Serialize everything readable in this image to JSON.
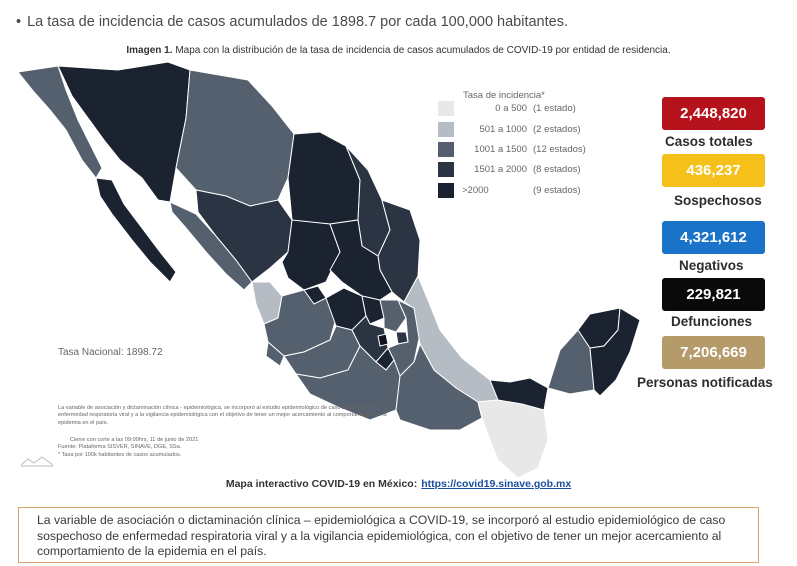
{
  "headline": "La tasa de incidencia de casos acumulados de 1898.7 por cada 100,000 habitantes.",
  "caption": {
    "prefix": "Imagen 1.",
    "text": "Mapa con la distribución de la tasa de incidencia de casos acumulados de COVID-19 por entidad de residencia."
  },
  "legend": {
    "title": "Tasa de incidencia*",
    "items": [
      {
        "range": "0 a   500",
        "count": "(1 estado)",
        "color": "#e8e8e8"
      },
      {
        "range": "501 a  1000",
        "count": "(2 estados)",
        "color": "#b5bcc4"
      },
      {
        "range": "1001 a  1500",
        "count": "(12 estados)",
        "color": "#55606e"
      },
      {
        "range": "1501 a  2000",
        "count": "(8 estados)",
        "color": "#2b3442"
      },
      {
        "range": ">2000",
        "count": "(9 estados)",
        "color": "#1b2230"
      }
    ]
  },
  "stats": [
    {
      "value": "2,448,820",
      "label": "Casos totales",
      "color": "#b5121b"
    },
    {
      "value": "436,237",
      "label": "Sospechosos",
      "color": "#f5c01a"
    },
    {
      "value": "4,321,612",
      "label": "Negativos",
      "color": "#1a73c9"
    },
    {
      "value": "229,821",
      "label": "Defunciones",
      "color": "#0a0a0a"
    },
    {
      "value": "7,206,669",
      "label": "Personas notificadas",
      "color": "#b59a6a"
    }
  ],
  "tasa_nacional": "Tasa Nacional: 1898.72",
  "small_note": "La variable de asociación y dictaminación clínica - epidemiológica, se incorporó al estudio epidemiológico de caso sospechoso de enfermedad respiratoria viral y a la vigilancia epidemiológica con el objetivo de tener un mejor acercamiento al comportamiento de la epidemia en el país.",
  "cutoff": "Cierre con corte a las 09:00hrs, 11 de junio de 2021",
  "source": "Fuente: Plataforma SISVER, SINAVE, DGE, SSa.",
  "rate_note": "* Tasa por 100k habitantes de casos acumulados.",
  "interactive": {
    "label": "Mapa interactivo COVID-19 en México:",
    "link": "https://covid19.sinave.gob.mx"
  },
  "bottom_note": "La variable de asociación o dictaminación clínica – epidemiológica a COVID-19, se incorporó al estudio epidemiológico de caso sospechoso de enfermedad respiratoria viral y a la vigilancia epidemiológica, con el objetivo de tener un mejor acercamiento al comportamiento de la epidemia en el país."
}
